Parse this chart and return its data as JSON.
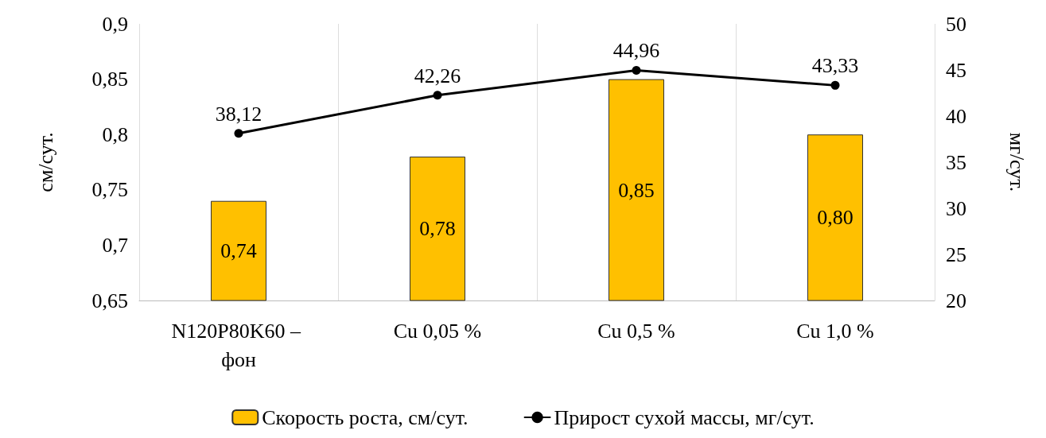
{
  "chart_data": {
    "type": "bar",
    "categories": [
      "N120P80K60 – фон",
      "Cu 0,05 %",
      "Cu 0,5 %",
      "Cu 1,0 %"
    ],
    "ylabel": "см/сут.",
    "y2label": "мг/сут.",
    "ylim": [
      0.65,
      0.9
    ],
    "yticks": [
      {
        "value": 0.65,
        "label": "0,65"
      },
      {
        "value": 0.7,
        "label": "0,7"
      },
      {
        "value": 0.75,
        "label": "0,75"
      },
      {
        "value": 0.8,
        "label": "0,8"
      },
      {
        "value": 0.85,
        "label": "0,85"
      },
      {
        "value": 0.9,
        "label": "0,9"
      }
    ],
    "y2lim": [
      20,
      50
    ],
    "y2ticks": [
      20,
      25,
      30,
      35,
      40,
      45,
      50
    ],
    "series": [
      {
        "name": "Скорость роста, см/сут.",
        "color": "#ffc000",
        "values": [
          0.74,
          0.78,
          0.85,
          0.8
        ],
        "value_labels": [
          "0,74",
          "0,78",
          "0,85",
          "0,80"
        ]
      },
      {
        "name": "Прирост сухой массы, мг/сут.",
        "type": "line",
        "axis": "y2",
        "color": "#000000",
        "marker": "circle",
        "values": [
          38.12,
          42.26,
          44.96,
          43.33
        ],
        "value_labels": [
          "38,12",
          "42,26",
          "44,96",
          "43,33"
        ]
      }
    ],
    "grid": "x",
    "legend": "bottom"
  }
}
